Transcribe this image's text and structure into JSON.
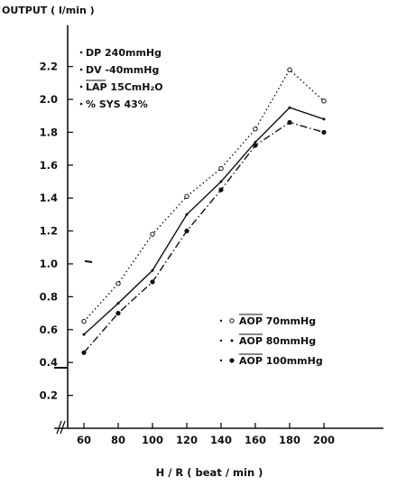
{
  "chart_data": {
    "type": "line",
    "ylabel": "OUTPUT ( l/min )",
    "xlabel": "H / R ( beat / min )",
    "x": [
      60,
      80,
      100,
      120,
      140,
      160,
      180,
      200
    ],
    "x_ticks": [
      "60",
      "80",
      "100",
      "120",
      "140",
      "160",
      "180",
      "200"
    ],
    "y_ticks": [
      "2.2",
      "2.0",
      "1.8",
      "1.6",
      "1.4",
      "1.2",
      "1.0",
      "0.8",
      "0.6",
      "0.4",
      "0.2"
    ],
    "xlim": [
      45,
      210
    ],
    "ylim": [
      0,
      2.2
    ],
    "grid": false,
    "parameters": [
      "DP 240mmHg",
      "DV -40mmHg",
      "LAP 15CmH₂O",
      "% SYS 43%"
    ],
    "series": [
      {
        "name": "AOP 70mmHg",
        "marker": "open",
        "line": "dotted",
        "color": "#111111",
        "values": [
          0.65,
          0.88,
          1.18,
          1.41,
          1.58,
          1.82,
          2.18,
          1.99
        ]
      },
      {
        "name": "AOP 80mmHg",
        "marker": "dot",
        "line": "solid",
        "color": "#111111",
        "values": [
          0.57,
          0.76,
          0.96,
          1.3,
          1.5,
          1.74,
          1.95,
          1.88
        ]
      },
      {
        "name": "AOP 100mmHg",
        "marker": "filled",
        "line": "dashdot",
        "color": "#111111",
        "values": [
          0.46,
          0.7,
          0.89,
          1.2,
          1.45,
          1.72,
          1.86,
          1.8
        ]
      }
    ],
    "legend_position": "bottom-right"
  }
}
